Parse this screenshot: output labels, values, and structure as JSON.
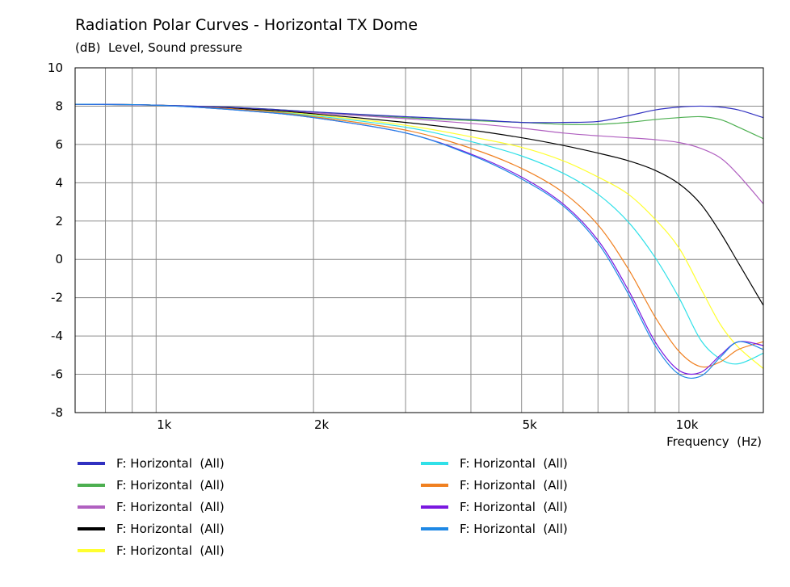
{
  "chart_data": {
    "type": "line",
    "title": "Radiation Polar Curves - Horizontal TX Dome",
    "subtitle": "(dB)  Level, Sound pressure",
    "xlabel": "Frequency  (Hz)",
    "x_scale": "log",
    "xlim": [
      700,
      14500
    ],
    "ylim": [
      -8,
      10
    ],
    "y_ticks": [
      10,
      8,
      6,
      4,
      2,
      0,
      -2,
      -4,
      -6,
      -8
    ],
    "x_tick_labels": [
      {
        "value": 1000,
        "label": "1k"
      },
      {
        "value": 2000,
        "label": "2k"
      },
      {
        "value": 5000,
        "label": "5k"
      },
      {
        "value": 10000,
        "label": "10k"
      }
    ],
    "x_gridlines": [
      700,
      800,
      900,
      1000,
      2000,
      3000,
      4000,
      5000,
      6000,
      7000,
      8000,
      9000,
      10000
    ],
    "grid": true,
    "x": [
      700,
      1000,
      1500,
      2000,
      3000,
      4000,
      5000,
      6000,
      7000,
      8000,
      9000,
      10000,
      11000,
      12000,
      13000,
      14500
    ],
    "series": [
      {
        "name": "F: Horizontal  (All)",
        "color": "#3030c0",
        "values": [
          8.1,
          8.05,
          7.9,
          7.7,
          7.45,
          7.3,
          7.15,
          7.15,
          7.2,
          7.5,
          7.8,
          7.95,
          8.0,
          7.95,
          7.8,
          7.4
        ]
      },
      {
        "name": "F: Horizontal  (All)",
        "color": "#4caf50",
        "values": [
          8.1,
          8.05,
          7.9,
          7.7,
          7.4,
          7.25,
          7.15,
          7.05,
          7.05,
          7.15,
          7.3,
          7.4,
          7.45,
          7.3,
          6.9,
          6.3
        ]
      },
      {
        "name": "F: Horizontal  (All)",
        "color": "#b060c0",
        "values": [
          8.1,
          8.05,
          7.85,
          7.65,
          7.35,
          7.1,
          6.85,
          6.6,
          6.45,
          6.35,
          6.25,
          6.1,
          5.8,
          5.3,
          4.4,
          2.9
        ]
      },
      {
        "name": "F: Horizontal  (All)",
        "color": "#000000",
        "values": [
          8.1,
          8.05,
          7.85,
          7.6,
          7.15,
          6.75,
          6.35,
          5.95,
          5.55,
          5.15,
          4.65,
          3.95,
          2.9,
          1.4,
          -0.2,
          -2.4
        ]
      },
      {
        "name": "F: Horizontal  (All)",
        "color": "#ffff30",
        "values": [
          8.1,
          8.05,
          7.8,
          7.55,
          7.0,
          6.4,
          5.85,
          5.15,
          4.3,
          3.4,
          2.1,
          0.6,
          -1.5,
          -3.4,
          -4.6,
          -5.7
        ]
      },
      {
        "name": "F: Horizontal  (All)",
        "color": "#30e0e8",
        "values": [
          8.1,
          8.05,
          7.8,
          7.5,
          6.9,
          6.15,
          5.4,
          4.5,
          3.4,
          1.95,
          0.1,
          -2.0,
          -4.2,
          -5.2,
          -5.45,
          -4.9
        ]
      },
      {
        "name": "F: Horizontal  (All)",
        "color": "#f08020",
        "values": [
          8.1,
          8.05,
          7.8,
          7.45,
          6.75,
          5.8,
          4.75,
          3.5,
          1.8,
          -0.5,
          -3.0,
          -4.8,
          -5.6,
          -5.35,
          -4.7,
          -4.3
        ]
      },
      {
        "name": "F: Horizontal  (All)",
        "color": "#7a18e0",
        "values": [
          8.1,
          8.05,
          7.75,
          7.4,
          6.6,
          5.5,
          4.3,
          2.9,
          1.0,
          -1.6,
          -4.3,
          -5.8,
          -5.9,
          -5.0,
          -4.3,
          -4.5
        ]
      },
      {
        "name": "F: Horizontal  (All)",
        "color": "#1e88e5",
        "values": [
          8.1,
          8.05,
          7.75,
          7.4,
          6.6,
          5.45,
          4.2,
          2.8,
          0.85,
          -1.8,
          -4.5,
          -6.0,
          -6.1,
          -5.1,
          -4.3,
          -4.7
        ]
      }
    ],
    "legend_placement": "bottom"
  }
}
